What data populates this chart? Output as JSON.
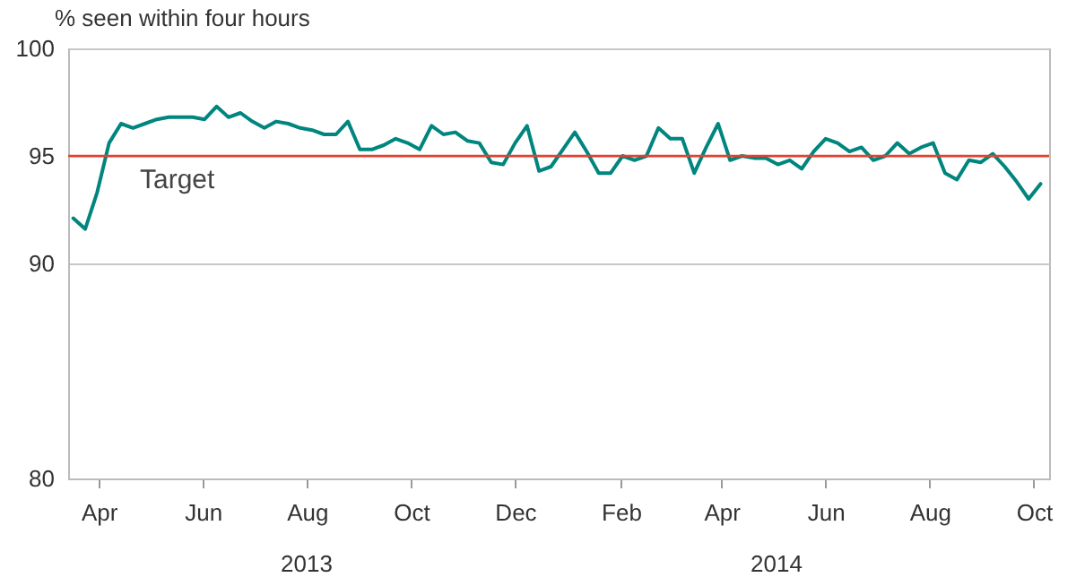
{
  "chart_data": {
    "type": "line",
    "ylabel": "% seen within four hours",
    "x": [
      "2013-03-31",
      "2013-04-07",
      "2013-04-14",
      "2013-04-21",
      "2013-04-28",
      "2013-05-05",
      "2013-05-12",
      "2013-05-19",
      "2013-05-26",
      "2013-06-02",
      "2013-06-09",
      "2013-06-16",
      "2013-06-23",
      "2013-06-30",
      "2013-07-07",
      "2013-07-14",
      "2013-07-21",
      "2013-07-28",
      "2013-08-04",
      "2013-08-11",
      "2013-08-18",
      "2013-08-25",
      "2013-09-01",
      "2013-09-08",
      "2013-09-15",
      "2013-09-22",
      "2013-09-29",
      "2013-10-06",
      "2013-10-13",
      "2013-10-20",
      "2013-10-27",
      "2013-11-03",
      "2013-11-10",
      "2013-11-17",
      "2013-11-24",
      "2013-12-01",
      "2013-12-08",
      "2013-12-15",
      "2013-12-22",
      "2013-12-29",
      "2014-01-05",
      "2014-01-12",
      "2014-01-19",
      "2014-01-26",
      "2014-02-02",
      "2014-02-09",
      "2014-02-16",
      "2014-02-23",
      "2014-03-02",
      "2014-03-09",
      "2014-03-16",
      "2014-03-23",
      "2014-03-30",
      "2014-04-06",
      "2014-04-13",
      "2014-04-20",
      "2014-04-27",
      "2014-05-04",
      "2014-05-11",
      "2014-05-18",
      "2014-05-25",
      "2014-06-01",
      "2014-06-08",
      "2014-06-15",
      "2014-06-22",
      "2014-06-29",
      "2014-07-06",
      "2014-07-13",
      "2014-07-20",
      "2014-07-27",
      "2014-08-03",
      "2014-08-10",
      "2014-08-17",
      "2014-08-24",
      "2014-08-31",
      "2014-09-07",
      "2014-09-14",
      "2014-09-21",
      "2014-09-28",
      "2014-10-05",
      "2014-10-12",
      "2014-10-19"
    ],
    "series": [
      {
        "color": "#00857f",
        "values": [
          92.1,
          91.6,
          93.3,
          95.6,
          96.5,
          96.3,
          96.5,
          96.7,
          96.8,
          96.8,
          96.8,
          96.7,
          97.3,
          96.8,
          97.0,
          96.6,
          96.3,
          96.6,
          96.5,
          96.3,
          96.2,
          96.0,
          96.0,
          96.6,
          95.3,
          95.3,
          95.5,
          95.8,
          95.6,
          95.3,
          96.4,
          96.0,
          96.1,
          95.7,
          95.6,
          94.7,
          94.6,
          95.6,
          96.4,
          94.3,
          94.5,
          95.3,
          96.1,
          95.2,
          94.2,
          94.2,
          95.0,
          94.8,
          95.0,
          96.3,
          95.8,
          95.8,
          94.2,
          95.4,
          96.5,
          94.8,
          95.0,
          94.9,
          94.9,
          94.6,
          94.8,
          94.4,
          95.2,
          95.8,
          95.6,
          95.2,
          95.4,
          94.8,
          95.0,
          95.6,
          95.1,
          95.4,
          95.6,
          94.2,
          93.9,
          94.8,
          94.7,
          95.1,
          94.5,
          93.8,
          93.0,
          93.7
        ]
      }
    ],
    "xlim": [
      "2013-03-28",
      "2014-10-24"
    ],
    "xticks": [
      {
        "value": "2013-04-15",
        "label": "Apr"
      },
      {
        "value": "2013-06-15",
        "label": "Jun"
      },
      {
        "value": "2013-08-15",
        "label": "Aug"
      },
      {
        "value": "2013-10-15",
        "label": "Oct"
      },
      {
        "value": "2013-12-15",
        "label": "Dec"
      },
      {
        "value": "2014-02-15",
        "label": "Feb"
      },
      {
        "value": "2014-04-15",
        "label": "Apr"
      },
      {
        "value": "2014-06-15",
        "label": "Jun"
      },
      {
        "value": "2014-08-15",
        "label": "Aug"
      },
      {
        "value": "2014-10-15",
        "label": "Oct"
      }
    ],
    "ylim": [
      80,
      100
    ],
    "yticks": [
      80,
      90,
      95,
      100
    ],
    "grid": "y",
    "marker": "none",
    "line_style": "solid",
    "ref_lines": [
      {
        "axis": "y",
        "value": 95,
        "label": "Target",
        "color": "#e8402a"
      }
    ],
    "annotations": [
      "2013",
      "2014"
    ]
  }
}
